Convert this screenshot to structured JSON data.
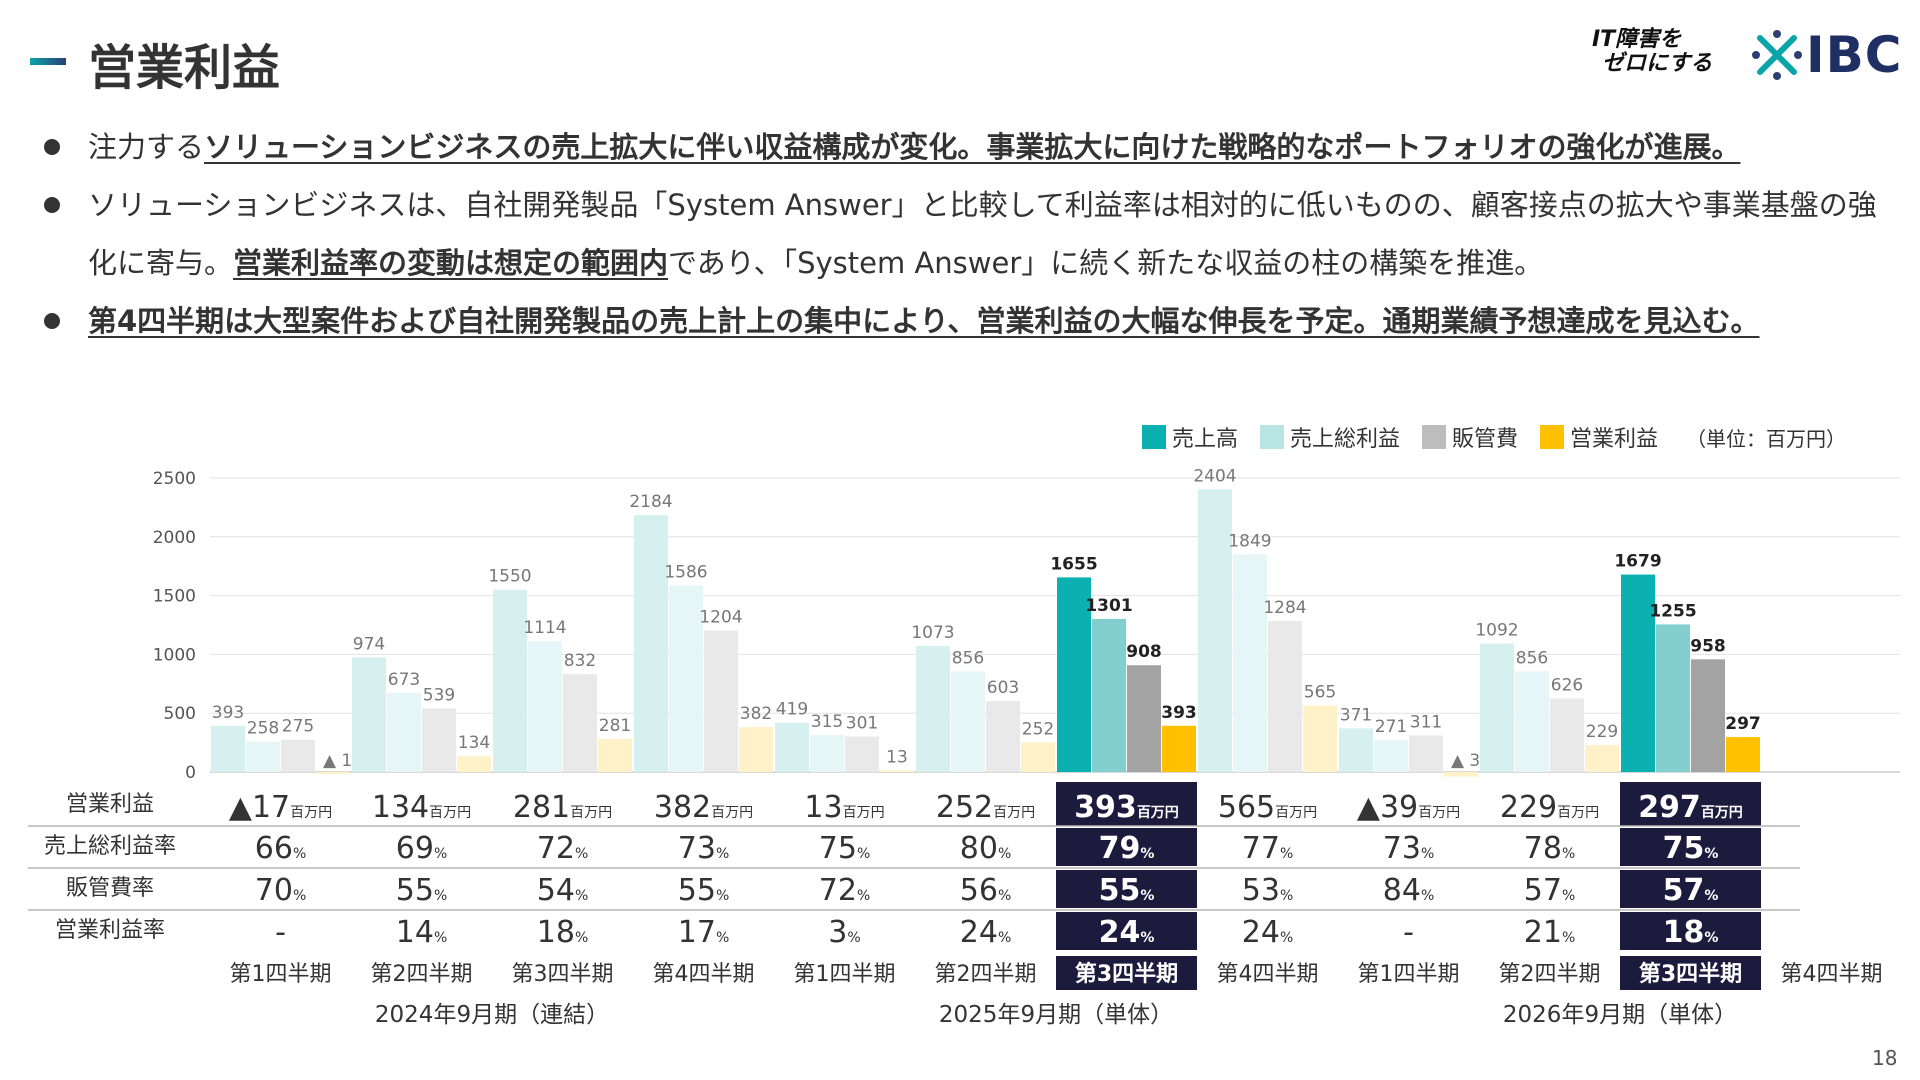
{
  "header": {
    "title": "営業利益",
    "logo_line1": "IT障害を",
    "logo_line2": "ゼロにする",
    "logo_brand": "IBC"
  },
  "bullets": [
    {
      "segments": [
        {
          "text": "注力する",
          "u": false
        },
        {
          "text": "ソリューションビジネスの売上拡大に伴い収益構成が変化。事業拡大に向けた戦略的なポートフォリオの強化が進展。",
          "u": true
        }
      ]
    },
    {
      "segments": [
        {
          "text": "ソリューションビジネスは、自社開発製品「System Answer」と比較して利益率は相対的に低いものの、顧客接点の拡大や事業基盤の強化に寄与。",
          "u": false
        },
        {
          "text": "営業利益率の変動は想定の範囲内",
          "u": true
        },
        {
          "text": "であり、「System Answer」に続く新たな収益の柱の構築を推進。",
          "u": false
        }
      ]
    },
    {
      "segments": [
        {
          "text": "第4四半期は大型案件および自社開発製品の売上計上の集中により、営業利益の大幅な伸長を予定。通期業績予想達成を見込む。",
          "u": true
        }
      ]
    }
  ],
  "legend": {
    "unit": "（単位：百万円）"
  },
  "row_labels": [
    "営業利益",
    "売上総利益率",
    "販管費率",
    "営業利益率"
  ],
  "oi_unit": "百万円",
  "pct_unit": "%",
  "chart_data": {
    "type": "bar",
    "ylim": [
      0,
      2500
    ],
    "yticks": [
      0,
      500,
      1000,
      1500,
      2000,
      2500
    ],
    "grid": true,
    "legend_position": "top-right",
    "categories": [
      "第1四半期",
      "第2四半期",
      "第3四半期",
      "第4四半期",
      "第1四半期",
      "第2四半期",
      "第3四半期",
      "第4四半期",
      "第1四半期",
      "第2四半期",
      "第3四半期",
      "第4四半期"
    ],
    "periods": [
      {
        "label": "2024年9月期（連結）",
        "from": 0,
        "to": 3
      },
      {
        "label": "2025年9月期（単体）",
        "from": 4,
        "to": 7
      },
      {
        "label": "2026年9月期（単体）",
        "from": 8,
        "to": 11
      }
    ],
    "highlight": [
      6,
      10
    ],
    "forecast": [
      7
    ],
    "series": [
      {
        "name": "売上高",
        "color": "#0bb0b0",
        "values": [
          393,
          974,
          1550,
          2184,
          419,
          1073,
          1655,
          2404,
          371,
          1092,
          1679,
          null
        ]
      },
      {
        "name": "売上総利益",
        "color": "#b8e4e4",
        "values": [
          258,
          673,
          1114,
          1586,
          315,
          856,
          1301,
          1849,
          271,
          856,
          1255,
          null
        ]
      },
      {
        "name": "販管費",
        "color": "#bdbdbd",
        "values": [
          275,
          539,
          832,
          1204,
          301,
          603,
          908,
          1284,
          311,
          626,
          958,
          null
        ]
      },
      {
        "name": "営業利益",
        "color": "#ffc000",
        "values": [
          -17,
          134,
          281,
          382,
          13,
          252,
          393,
          565,
          -39,
          229,
          297,
          null
        ]
      }
    ],
    "pale_colors": [
      "#d6efef",
      "#e6f5f5",
      "#e9e9e9",
      "#fff2c9"
    ],
    "mid_colors": [
      "#0bb0b0",
      "#83cfcf",
      "#a3a3a3",
      "#ffc000"
    ],
    "bar_labels": [
      [
        "393",
        "974",
        "1550",
        "2184",
        "419",
        "1073",
        "1655",
        "2404",
        "371",
        "1092",
        "1679",
        ""
      ],
      [
        "258",
        "673",
        "1114",
        "1586",
        "315",
        "856",
        "1301",
        "1849",
        "271",
        "856",
        "1255",
        ""
      ],
      [
        "275",
        "539",
        "832",
        "1204",
        "301",
        "603",
        "908",
        "1284",
        "311",
        "626",
        "958",
        ""
      ],
      [
        "▲ 17",
        "134",
        "281",
        "382",
        "13",
        "252",
        "393",
        "565",
        "▲ 39",
        "229",
        "297",
        ""
      ]
    ],
    "table": {
      "operating_income": [
        "▲17",
        "134",
        "281",
        "382",
        "13",
        "252",
        "393",
        "565",
        "▲39",
        "229",
        "297",
        ""
      ],
      "gross_margin": [
        "66",
        "69",
        "72",
        "73",
        "75",
        "80",
        "79",
        "77",
        "73",
        "78",
        "75",
        ""
      ],
      "sga_ratio": [
        "70",
        "55",
        "54",
        "55",
        "72",
        "56",
        "55",
        "53",
        "84",
        "57",
        "57",
        ""
      ],
      "operating_margin": [
        "-",
        "14",
        "18",
        "17",
        "3",
        "24",
        "24",
        "24",
        "-",
        "21",
        "18",
        ""
      ]
    }
  },
  "page_number": "18"
}
